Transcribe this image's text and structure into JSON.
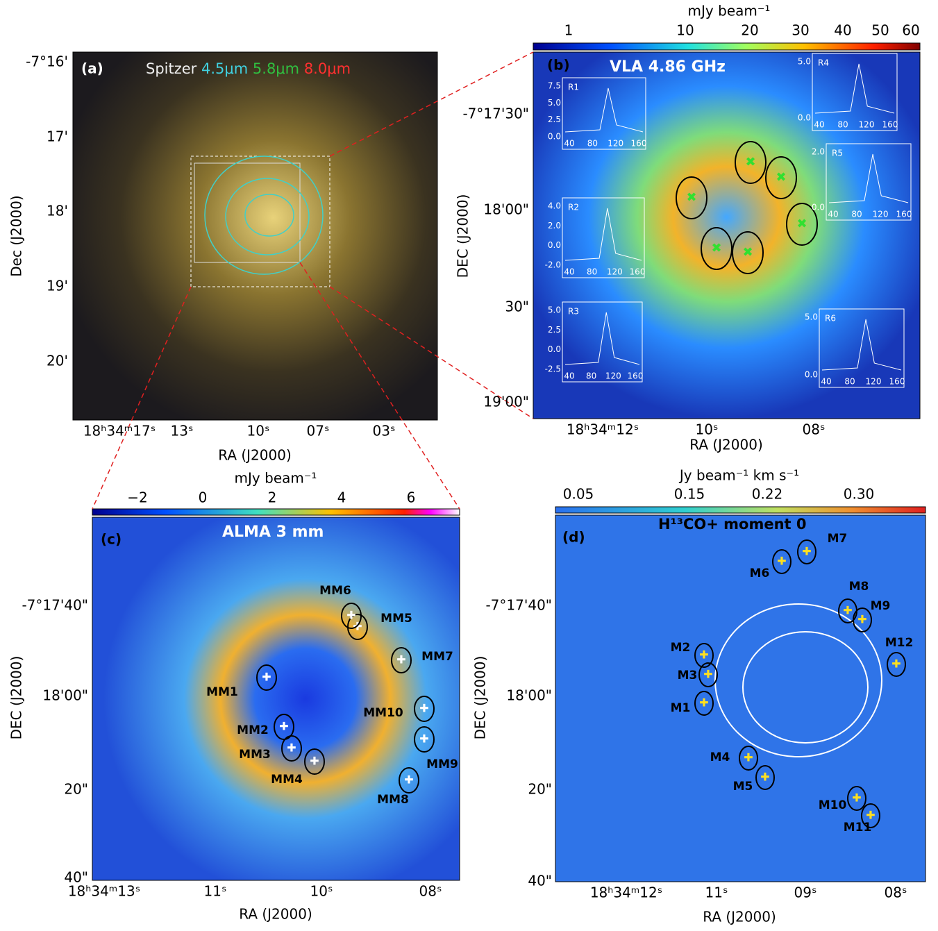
{
  "panel_a": {
    "label": "(a)",
    "title": [
      "Spitzer",
      "4.5μm",
      "5.8μm",
      "8.0μm"
    ],
    "yticks": [
      "-7°16'",
      "17'",
      "18'",
      "19'",
      "20'"
    ],
    "xticks": [
      "18ʰ34ᵐ17ˢ",
      "13ˢ",
      "10ˢ",
      "07ˢ",
      "03ˢ"
    ],
    "xlabel": "RA (J2000)",
    "ylabel": "Dec (J2000)"
  },
  "panel_b": {
    "label": "(b)",
    "title": "VLA 4.86 GHz",
    "colorbar": {
      "label": "mJy beam⁻¹",
      "ticks": [
        "1",
        "10",
        "20",
        "30",
        "40",
        "50",
        "60"
      ]
    },
    "yticks": [
      "-7°17'30\"",
      "18'00\"",
      "30\"",
      "19'00\""
    ],
    "xticks": [
      "18ʰ34ᵐ12ˢ",
      "10ˢ",
      "08ˢ"
    ],
    "xlabel": "RA (J2000)",
    "ylabel": "DEC (J2000)",
    "insets": [
      {
        "name": "R1",
        "yticks": [
          "7.5",
          "5.0",
          "2.5",
          "0.0"
        ],
        "xticks": [
          "40",
          "80",
          "120",
          "160"
        ]
      },
      {
        "name": "R2",
        "yticks": [
          "4.0",
          "2.0",
          "0.0",
          "-2.0"
        ],
        "xticks": [
          "40",
          "80",
          "120",
          "160"
        ]
      },
      {
        "name": "R3",
        "yticks": [
          "5.0",
          "2.5",
          "0.0",
          "-2.5"
        ],
        "xticks": [
          "40",
          "80",
          "120",
          "160"
        ]
      },
      {
        "name": "R4",
        "yticks": [
          "5.0",
          "0.0"
        ],
        "xticks": [
          "40",
          "80",
          "120",
          "160"
        ]
      },
      {
        "name": "R5",
        "yticks": [
          "2.0",
          "0.0"
        ],
        "xticks": [
          "40",
          "80",
          "120",
          "160"
        ]
      },
      {
        "name": "R6",
        "yticks": [
          "5.0",
          "0.0"
        ],
        "xticks": [
          "40",
          "80",
          "120",
          "160"
        ]
      }
    ]
  },
  "panel_c": {
    "label": "(c)",
    "title": "ALMA 3 mm",
    "colorbar": {
      "label": "mJy beam⁻¹",
      "ticks": [
        "−2",
        "0",
        "2",
        "4",
        "6"
      ]
    },
    "yticks": [
      "-7°17'40\"",
      "18'00\"",
      "20\"",
      "40\""
    ],
    "xticks": [
      "18ʰ34ᵐ13ˢ",
      "11ˢ",
      "10ˢ",
      "08ˢ"
    ],
    "xlabel": "RA (J2000)",
    "ylabel": "DEC (J2000)",
    "sources": [
      "MM1",
      "MM2",
      "MM3",
      "MM4",
      "MM5",
      "MM6",
      "MM7",
      "MM8",
      "MM9",
      "MM10"
    ]
  },
  "panel_d": {
    "label": "(d)",
    "title": "H¹³CO+ moment 0",
    "colorbar": {
      "label": "Jy beam⁻¹ km s⁻¹",
      "ticks": [
        "0.05",
        "0.15",
        "0.22",
        "0.30"
      ]
    },
    "yticks": [
      "-7°17'40\"",
      "18'00\"",
      "20\"",
      "40\""
    ],
    "xticks": [
      "18ʰ34ᵐ12ˢ",
      "11ˢ",
      "09ˢ",
      "08ˢ"
    ],
    "xlabel": "RA (J2000)",
    "ylabel": "DEC (J2000)",
    "sources": [
      "M1",
      "M2",
      "M3",
      "M4",
      "M5",
      "M6",
      "M7",
      "M8",
      "M9",
      "M10",
      "M11",
      "M12"
    ]
  }
}
